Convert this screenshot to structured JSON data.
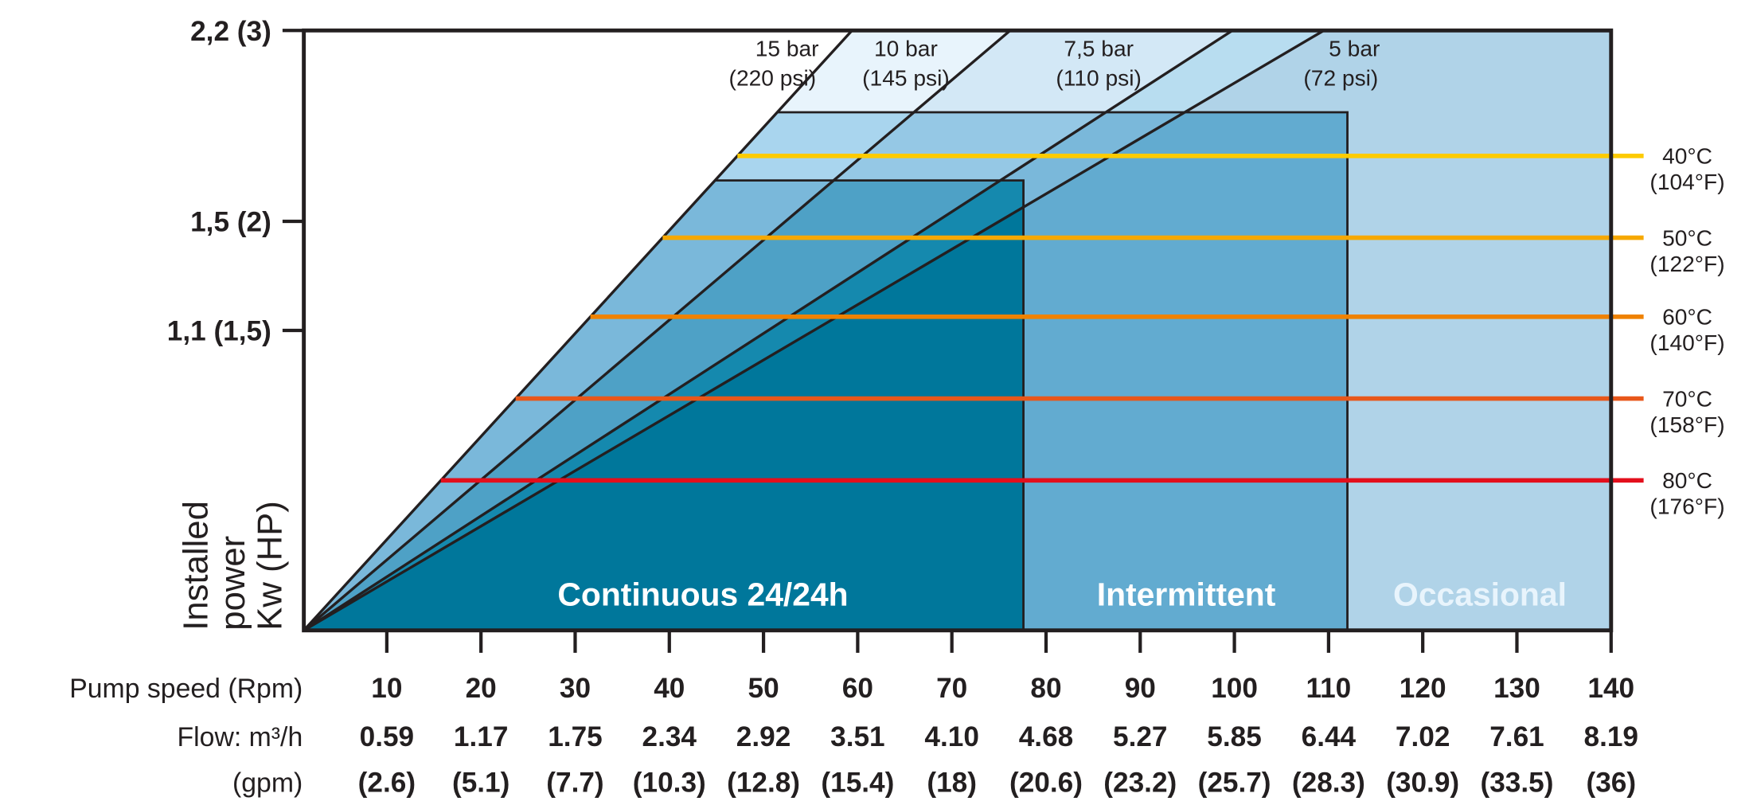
{
  "chart_data": {
    "type": "area",
    "title": "",
    "ylabel": [
      "Installed",
      "power",
      "Kw (HP)"
    ],
    "xlim": [
      0,
      140
    ],
    "ylim_kw": [
      0,
      2.2
    ],
    "y_ticks": [
      {
        "value": 2.2,
        "label": "2,2 (3)"
      },
      {
        "value": 1.5,
        "label": "1,5 (2)"
      },
      {
        "value": 1.1,
        "label": "1,1 (1,5)"
      }
    ],
    "x_rows": {
      "labels": [
        "Pump speed (Rpm)",
        "Flow: m³/h",
        "(gpm)"
      ],
      "rpm": [
        "10",
        "20",
        "30",
        "40",
        "50",
        "60",
        "70",
        "80",
        "90",
        "100",
        "110",
        "120",
        "130",
        "140"
      ],
      "flow": [
        "0.59",
        "1.17",
        "1.75",
        "2.34",
        "2.92",
        "3.51",
        "4.10",
        "4.68",
        "5.27",
        "5.85",
        "6.44",
        "7.02",
        "7.61",
        "8.19"
      ],
      "gpm": [
        "(2.6)",
        "(5.1)",
        "(7.7)",
        "(10.3)",
        "(12.8)",
        "(15.4)",
        "(18)",
        "(20.6)",
        "(23.2)",
        "(25.7)",
        "(28.3)",
        "(30.9)",
        "(33.5)",
        "(36)"
      ]
    },
    "pressure_lines": [
      {
        "label": "15 bar",
        "sub": "(220 psi)",
        "rpm_at_max_kw": 59.4
      },
      {
        "label": "10 bar",
        "sub": "(145 psi)",
        "rpm_at_max_kw": 76.2
      },
      {
        "label": "7,5 bar",
        "sub": "(110 psi)",
        "rpm_at_max_kw": 99.8
      },
      {
        "label": "5 bar",
        "sub": "(72 psi)",
        "rpm_at_max_kw": 109.5
      }
    ],
    "duty_zones": [
      {
        "label": "Continuous 24/24h",
        "max_rpm": 77.6,
        "max_kw": 1.65,
        "color": "#ffffff"
      },
      {
        "label": "Intermittent",
        "max_rpm": 112,
        "max_kw": 1.9,
        "color": "#ffffff"
      },
      {
        "label": "Occasional",
        "max_rpm": 140,
        "max_kw": 2.2,
        "color": "#e8f4fc"
      }
    ],
    "temperature_lines": [
      {
        "label": "40°C",
        "sub": "(104°F)",
        "kw": 1.74,
        "color": "#fdcb00"
      },
      {
        "label": "50°C",
        "sub": "(122°F)",
        "kw": 1.44,
        "color": "#f6a800"
      },
      {
        "label": "60°C",
        "sub": "(140°F)",
        "kw": 1.15,
        "color": "#ef8200"
      },
      {
        "label": "70°C",
        "sub": "(158°F)",
        "kw": 0.85,
        "color": "#e8571a"
      },
      {
        "label": "80°C",
        "sub": "(176°F)",
        "kw": 0.55,
        "color": "#e30f1c"
      }
    ],
    "fills": {
      "top": [
        "#e8f4fc",
        "#d3e8f6",
        "#b8ddf0",
        "#b0d3e8"
      ],
      "mid": [
        "#a9d5ee",
        "#95c8e5",
        "#7ab8da",
        "#62abd0"
      ],
      "low": [
        "#7ab8da",
        "#4ea1c6",
        "#1589ae",
        "#00779b"
      ],
      "occasional": "#b0d3e8"
    },
    "grid": false
  }
}
